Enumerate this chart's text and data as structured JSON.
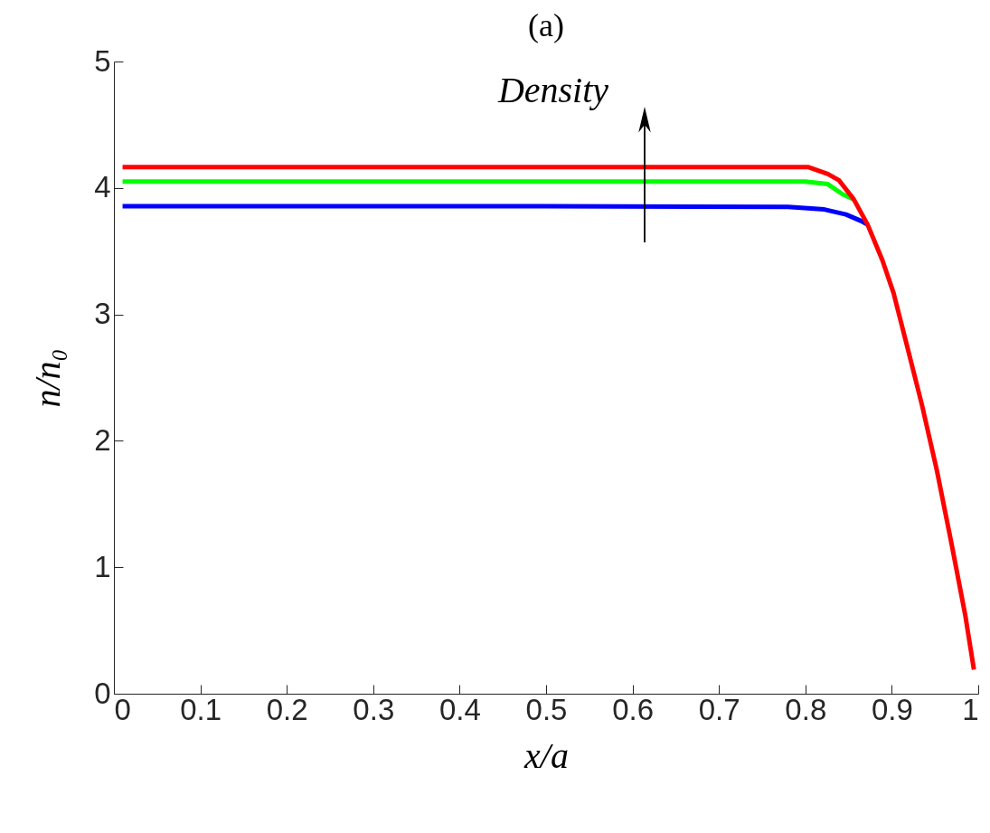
{
  "chart_data": {
    "type": "line",
    "title": "(a)",
    "xlabel": "x/a",
    "ylabel": "n/n₀",
    "xlim": [
      0,
      1
    ],
    "ylim": [
      0,
      5
    ],
    "xticks": [
      0,
      0.1,
      0.2,
      0.3,
      0.4,
      0.5,
      0.6,
      0.7,
      0.8,
      0.9,
      1
    ],
    "yticks": [
      0,
      1,
      2,
      3,
      4,
      5
    ],
    "grid": false,
    "legend": false,
    "marker": "none",
    "line_style": "solid",
    "annotations": [
      "Density"
    ],
    "series": [
      {
        "color": "#0000ff",
        "x": [
          0.01,
          0.5,
          0.78,
          0.822,
          0.847,
          0.864,
          0.872
        ],
        "values": [
          3.855,
          3.855,
          3.85,
          3.83,
          3.79,
          3.74,
          3.71
        ]
      },
      {
        "color": "#00ff00",
        "x": [
          0.01,
          0.5,
          0.8,
          0.826,
          0.843,
          0.856
        ],
        "values": [
          4.05,
          4.05,
          4.05,
          4.03,
          3.95,
          3.91
        ]
      },
      {
        "color": "#ff0000",
        "x": [
          0.01,
          0.5,
          0.803,
          0.826,
          0.839,
          0.856,
          0.872,
          0.889,
          0.902,
          0.918,
          0.935,
          0.952,
          0.969,
          0.985,
          0.995
        ],
        "values": [
          4.165,
          4.165,
          4.165,
          4.11,
          4.06,
          3.91,
          3.71,
          3.43,
          3.17,
          2.74,
          2.28,
          1.77,
          1.19,
          0.62,
          0.19
        ]
      }
    ]
  }
}
